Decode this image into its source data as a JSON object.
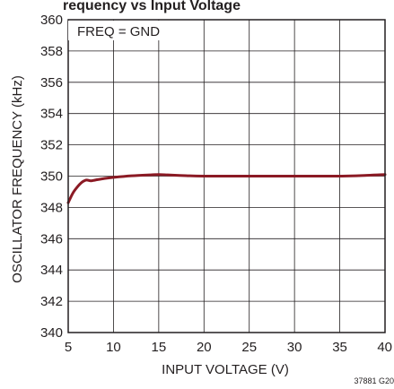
{
  "chart_data": {
    "type": "line",
    "header_visible": "requency vs Input Voltage",
    "xlabel": "INPUT VOLTAGE (V)",
    "ylabel": "OSCILLATOR FREQUENCY (kHz)",
    "xlim": [
      5,
      40
    ],
    "ylim": [
      340,
      360
    ],
    "xticks": [
      5,
      10,
      15,
      20,
      25,
      30,
      35,
      40
    ],
    "yticks": [
      340,
      342,
      344,
      346,
      348,
      350,
      352,
      354,
      356,
      358,
      360
    ],
    "grid": true,
    "annotation": "FREQ = GND",
    "figure_code": "37881 G20",
    "line_color": "#8b1a24",
    "series": [
      {
        "x": [
          5,
          5.5,
          6,
          6.5,
          7,
          7.5,
          8,
          9,
          10,
          12,
          14,
          15,
          16,
          18,
          20,
          25,
          30,
          35,
          38,
          40
        ],
        "y": [
          348.3,
          348.9,
          349.3,
          349.6,
          349.75,
          349.7,
          349.75,
          349.85,
          349.92,
          350.02,
          350.08,
          350.1,
          350.08,
          350.03,
          350.0,
          350.0,
          350.0,
          350.0,
          350.05,
          350.1
        ]
      }
    ]
  }
}
